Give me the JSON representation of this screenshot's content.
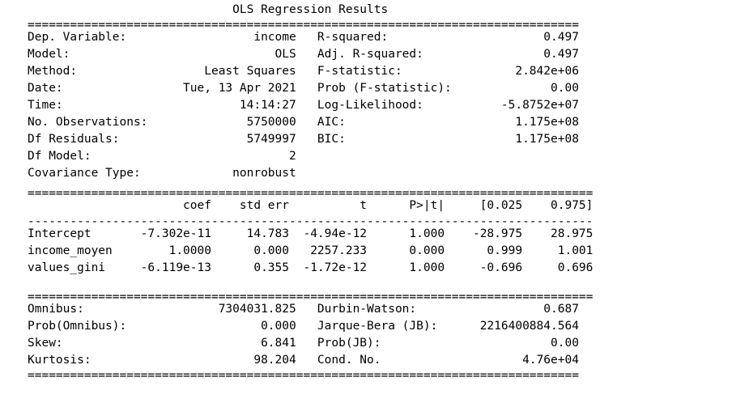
{
  "title": "OLS Regression Results",
  "rules": {
    "double_short": "==============================================================================",
    "double_long": "================================================================================",
    "dash_long": "--------------------------------------------------------------------------------"
  },
  "summary_rows": [
    {
      "l_label": "Dep. Variable:",
      "l_value": "income",
      "r_label": "R-squared:",
      "r_value": "0.497"
    },
    {
      "l_label": "Model:",
      "l_value": "OLS",
      "r_label": "Adj. R-squared:",
      "r_value": "0.497"
    },
    {
      "l_label": "Method:",
      "l_value": "Least Squares",
      "r_label": "F-statistic:",
      "r_value": "2.842e+06"
    },
    {
      "l_label": "Date:",
      "l_value": "Tue, 13 Apr 2021",
      "r_label": "Prob (F-statistic):",
      "r_value": "0.00"
    },
    {
      "l_label": "Time:",
      "l_value": "14:14:27",
      "r_label": "Log-Likelihood:",
      "r_value": "-5.8752e+07"
    },
    {
      "l_label": "No. Observations:",
      "l_value": "5750000",
      "r_label": "AIC:",
      "r_value": "1.175e+08"
    },
    {
      "l_label": "Df Residuals:",
      "l_value": "5749997",
      "r_label": "BIC:",
      "r_value": "1.175e+08"
    },
    {
      "l_label": "Df Model:",
      "l_value": "2",
      "r_label": "",
      "r_value": ""
    },
    {
      "l_label": "Covariance Type:",
      "l_value": "nonrobust",
      "r_label": "",
      "r_value": ""
    }
  ],
  "coef_header": [
    "",
    "coef",
    "std err",
    "t",
    "P>|t|",
    "[0.025",
    "0.975]"
  ],
  "coef_rows": [
    [
      "Intercept",
      "-7.302e-11",
      "14.783",
      "-4.94e-12",
      "1.000",
      "-28.975",
      "28.975"
    ],
    [
      "income_moyen",
      "1.0000",
      "0.000",
      "2257.233",
      "0.000",
      "0.999",
      "1.001"
    ],
    [
      "values_gini",
      "-6.119e-13",
      "0.355",
      "-1.72e-12",
      "1.000",
      "-0.696",
      "0.696"
    ]
  ],
  "diag_rows": [
    {
      "l_label": "Omnibus:",
      "l_value": "7304031.825",
      "r_label": "Durbin-Watson:",
      "r_value": "0.687"
    },
    {
      "l_label": "Prob(Omnibus):",
      "l_value": "0.000",
      "r_label": "Jarque-Bera (JB):",
      "r_value": "2216400884.564"
    },
    {
      "l_label": "Skew:",
      "l_value": "6.841",
      "r_label": "Prob(JB):",
      "r_value": "0.00"
    },
    {
      "l_label": "Kurtosis:",
      "l_value": "98.204",
      "r_label": "Cond. No.",
      "r_value": "4.76e+04"
    }
  ]
}
